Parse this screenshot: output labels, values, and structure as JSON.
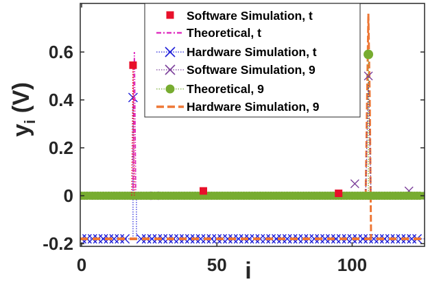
{
  "chart_data": {
    "type": "line",
    "xlabel": "i",
    "ylabel": "y",
    "ylabel_subscript": "i",
    "ylabel_unit": " (V)",
    "xlim": [
      0,
      125
    ],
    "ylim": [
      -0.2,
      0.78
    ],
    "x_ticks": [
      0,
      50,
      100
    ],
    "x_tick_labels": [
      "0",
      "50",
      "100"
    ],
    "y_ticks": [
      -0.2,
      0,
      0.2,
      0.4,
      0.6
    ],
    "y_tick_labels": [
      "-0.2",
      "0",
      "0.2",
      "0.4",
      "0.6"
    ],
    "grid": false,
    "legend_position": "top-center",
    "colors": {
      "software_t": "#e8102a",
      "theoretical_t": "#e030c0",
      "hardware_t": "#1c1cd8",
      "software_9": "#7b3f9a",
      "theoretical_9": "#77ac30",
      "hardware_9": "#ee7735"
    },
    "series": [
      {
        "name": "Software Simulation, t",
        "style": "red-square-markers",
        "points": [
          [
            19,
            0.545
          ],
          [
            45,
            0.02
          ],
          [
            95,
            0.01
          ]
        ]
      },
      {
        "name": "Theoretical, t",
        "style": "magenta-dash-dot-line",
        "points": [
          [
            0,
            0
          ],
          [
            19,
            0
          ],
          [
            19.5,
            0.6
          ],
          [
            20,
            0
          ],
          [
            125,
            0
          ]
        ]
      },
      {
        "name": "Hardware Simulation, t",
        "style": "blue-x-dotted-line",
        "baseline": -0.18,
        "points": [
          [
            19,
            0.41
          ]
        ]
      },
      {
        "name": "Software Simulation, 9",
        "style": "purple-x-markers",
        "points": [
          [
            27,
            0
          ],
          [
            101,
            0.05
          ],
          [
            106,
            0.5
          ],
          [
            121,
            0.02
          ]
        ]
      },
      {
        "name": "Theoretical, 9",
        "style": "green-circle-dotted-line",
        "points": [
          [
            106,
            0.59
          ]
        ]
      },
      {
        "name": "Hardware Simulation, 9",
        "style": "orange-dashed-line",
        "baseline": -0.18,
        "points": [
          [
            105,
            0
          ],
          [
            106,
            0.76
          ],
          [
            107,
            -0.18
          ]
        ]
      }
    ]
  }
}
